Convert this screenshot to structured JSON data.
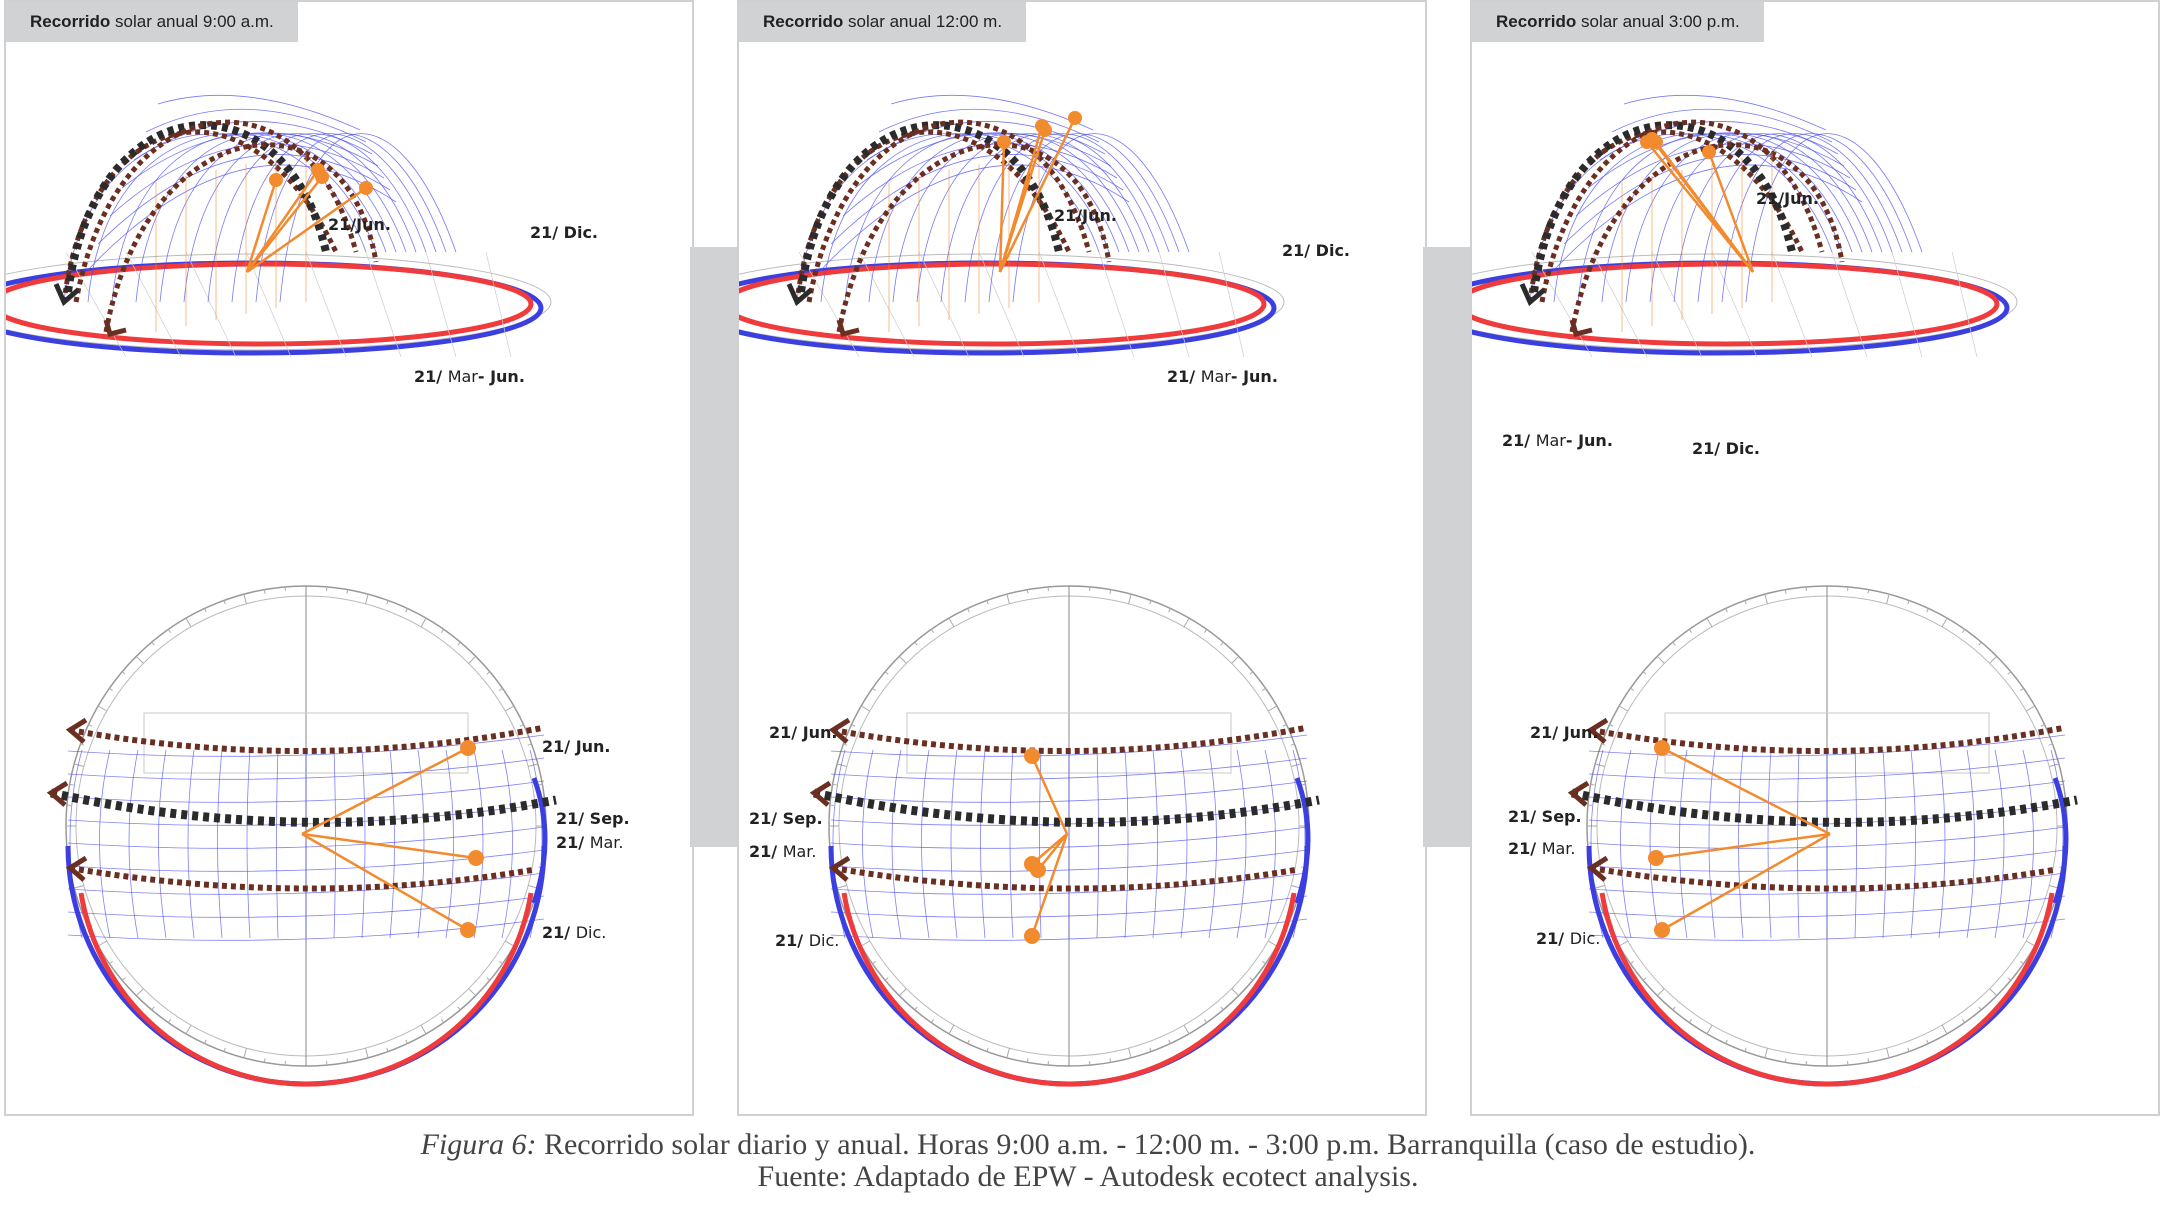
{
  "panels": [
    {
      "title_bold": "Recorrido",
      "title_rest": " solar anual 9:00 a.m.",
      "top_labels": {
        "jun": "21/Jun.",
        "dic": "21/ Dic.",
        "mar_a": "21/ ",
        "mar_b": "Mar",
        "mar_c": "- Jun."
      },
      "bottom_labels": {
        "jun_a": "21/ ",
        "jun_b": "Jun.",
        "sep": "21/ Sep.",
        "mar_a": "21/ ",
        "mar_b": "Mar.",
        "dic_a": "21/ ",
        "dic_b": "Dic."
      }
    },
    {
      "title_bold": "Recorrido",
      "title_rest": " solar anual 12:00 m.",
      "top_labels": {
        "jun": "21/Jun.",
        "dic": "21/ Dic.",
        "mar_a": "21/ ",
        "mar_b": "Mar",
        "mar_c": "- Jun."
      },
      "bottom_labels": {
        "jun_a": "21/ ",
        "jun_b": "Jun.",
        "sep": "21/ Sep.",
        "mar_a": "21/ ",
        "mar_b": "Mar.",
        "dic_a": "21/ ",
        "dic_b": "Dic."
      }
    },
    {
      "title_bold": "Recorrido",
      "title_rest": " solar anual 3:00 p.m.",
      "top_labels": {
        "jun": "21/Jun.",
        "dic": "21/ Dic.",
        "mar_a": "21/ ",
        "mar_b": "Mar",
        "mar_c": "- Jun."
      },
      "bottom_labels": {
        "jun_a": "21/ ",
        "jun_b": "Jun.",
        "sep": "21/ Sep.",
        "mar_a": "21/ ",
        "mar_b": "Mar.",
        "dic_a": "21/ ",
        "dic_b": "Dic."
      }
    }
  ],
  "caption": {
    "fig_label": "Figura 6:",
    "line1": " Recorrido solar diario y anual. Horas 9:00 a.m. - 12:00 m. - 3:00 p.m. Barranquilla (caso de estudio).",
    "line2": "Fuente: Adaptado de EPW - Autodesk ecotect analysis."
  },
  "colors": {
    "frame": "#cfd0d2",
    "tab_bg": "#d1d2d4",
    "grid_blue": "#4a4cf2",
    "path_brown": "#6b2f22",
    "equinox_black": "#2b2b2b",
    "ring_red": "#ef3b3b",
    "ring_blue": "#3b3fe0",
    "sun_orange": "#f28a2e"
  },
  "icons": {
    "sun_marker": "orange-dot",
    "path_arrow": "arrowhead"
  }
}
